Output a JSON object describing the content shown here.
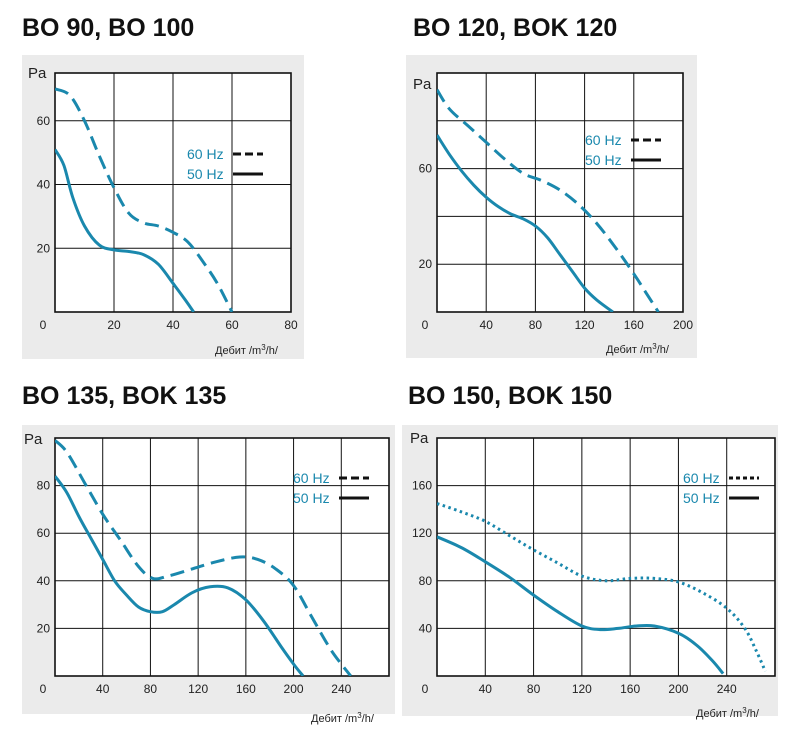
{
  "colors": {
    "series": "#1a88ad",
    "panel": "#ebebeb",
    "grid": "#111111"
  },
  "chart_data": [
    {
      "type": "line",
      "title": "BO 90, BO 100",
      "ylabel": "Pa",
      "xlabel_prefix": "Дебит /m",
      "xlabel_sup": "3",
      "xlabel_suffix": "/h/",
      "xlim": [
        0,
        80
      ],
      "ylim": [
        0,
        75
      ],
      "xticks": [
        20,
        40,
        60,
        80
      ],
      "yticks": [
        20,
        40,
        60
      ],
      "xgrid": [
        0,
        20,
        40,
        60,
        80
      ],
      "ygrid": [
        0,
        20,
        40,
        60,
        75
      ],
      "origin_label": "0",
      "legend": "right",
      "series": [
        {
          "name": "60 Hz",
          "style": "dashed",
          "points": [
            [
              0,
              70
            ],
            [
              5,
              68
            ],
            [
              10,
              60
            ],
            [
              15,
              49
            ],
            [
              20,
              39
            ],
            [
              25,
              31
            ],
            [
              30,
              28
            ],
            [
              35,
              27
            ],
            [
              40,
              25
            ],
            [
              45,
              22
            ],
            [
              50,
              16
            ],
            [
              55,
              9
            ],
            [
              60,
              0
            ]
          ]
        },
        {
          "name": "50 Hz",
          "style": "solid",
          "points": [
            [
              0,
              51
            ],
            [
              3,
              46
            ],
            [
              6,
              36
            ],
            [
              10,
              27
            ],
            [
              15,
              21
            ],
            [
              20,
              19.5
            ],
            [
              25,
              19
            ],
            [
              30,
              18
            ],
            [
              35,
              15
            ],
            [
              40,
              9
            ],
            [
              44,
              4
            ],
            [
              47,
              0
            ]
          ]
        }
      ]
    },
    {
      "type": "line",
      "title": "BO 120, BOK 120",
      "ylabel": "Pa",
      "xlabel_prefix": "Дебит /m",
      "xlabel_sup": "3",
      "xlabel_suffix": "/h/",
      "xlim": [
        0,
        200
      ],
      "ylim": [
        0,
        100
      ],
      "xticks": [
        40,
        80,
        120,
        160,
        200
      ],
      "yticks": [
        20,
        60
      ],
      "xgrid": [
        0,
        40,
        80,
        120,
        160,
        200
      ],
      "ygrid": [
        0,
        20,
        40,
        60,
        80,
        100
      ],
      "origin_label": "0",
      "legend": "top-right",
      "series": [
        {
          "name": "60 Hz",
          "style": "dashed",
          "points": [
            [
              0,
              93
            ],
            [
              10,
              85
            ],
            [
              25,
              78
            ],
            [
              40,
              71
            ],
            [
              55,
              64
            ],
            [
              70,
              58
            ],
            [
              85,
              55
            ],
            [
              100,
              51
            ],
            [
              115,
              45
            ],
            [
              130,
              37
            ],
            [
              145,
              27
            ],
            [
              160,
              16
            ],
            [
              170,
              8
            ],
            [
              180,
              0
            ]
          ]
        },
        {
          "name": "50 Hz",
          "style": "solid",
          "points": [
            [
              0,
              74
            ],
            [
              10,
              66
            ],
            [
              20,
              59
            ],
            [
              30,
              53
            ],
            [
              40,
              48
            ],
            [
              50,
              44
            ],
            [
              60,
              41
            ],
            [
              70,
              39
            ],
            [
              80,
              36
            ],
            [
              90,
              31
            ],
            [
              100,
              24
            ],
            [
              110,
              17
            ],
            [
              120,
              10
            ],
            [
              130,
              5
            ],
            [
              143,
              0
            ]
          ]
        }
      ]
    },
    {
      "type": "line",
      "title": "BO 135, BOK 135",
      "ylabel": "Pa",
      "xlabel_prefix": "Дебит /m",
      "xlabel_sup": "3",
      "xlabel_suffix": "/h/",
      "xlim": [
        0,
        280
      ],
      "ylim": [
        0,
        100
      ],
      "xticks": [
        40,
        80,
        120,
        160,
        200,
        240
      ],
      "yticks": [
        20,
        40,
        60,
        80
      ],
      "xgrid": [
        0,
        40,
        80,
        120,
        160,
        200,
        240,
        280
      ],
      "ygrid": [
        0,
        20,
        40,
        60,
        80,
        100
      ],
      "origin_label": "0",
      "legend": "top-right",
      "series": [
        {
          "name": "60 Hz",
          "style": "dashed",
          "points": [
            [
              0,
              99
            ],
            [
              10,
              94
            ],
            [
              25,
              81
            ],
            [
              40,
              68
            ],
            [
              55,
              57
            ],
            [
              70,
              46
            ],
            [
              82,
              41
            ],
            [
              95,
              42
            ],
            [
              115,
              45
            ],
            [
              135,
              48
            ],
            [
              155,
              50
            ],
            [
              170,
              49
            ],
            [
              185,
              45
            ],
            [
              200,
              38
            ],
            [
              215,
              25
            ],
            [
              230,
              12
            ],
            [
              240,
              5
            ],
            [
              248,
              0
            ]
          ]
        },
        {
          "name": "50 Hz",
          "style": "solid",
          "points": [
            [
              0,
              84
            ],
            [
              10,
              77
            ],
            [
              20,
              67
            ],
            [
              30,
              58
            ],
            [
              40,
              49
            ],
            [
              50,
              40
            ],
            [
              60,
              34
            ],
            [
              70,
              29
            ],
            [
              80,
              27
            ],
            [
              90,
              27
            ],
            [
              100,
              30
            ],
            [
              115,
              35
            ],
            [
              130,
              37.5
            ],
            [
              145,
              37
            ],
            [
              160,
              32
            ],
            [
              175,
              23
            ],
            [
              190,
              12
            ],
            [
              200,
              5
            ],
            [
              208,
              0
            ]
          ]
        }
      ]
    },
    {
      "type": "line",
      "title": "BO 150, BOK 150",
      "ylabel": "Pa",
      "xlabel_prefix": "Дебит /m",
      "xlabel_sup": "3",
      "xlabel_suffix": "/h/",
      "xlim": [
        0,
        280
      ],
      "ylim": [
        0,
        200
      ],
      "xticks": [
        40,
        80,
        120,
        160,
        200,
        240
      ],
      "yticks": [
        40,
        80,
        120,
        160
      ],
      "xgrid": [
        0,
        40,
        80,
        120,
        160,
        200,
        240,
        280
      ],
      "ygrid": [
        0,
        40,
        80,
        120,
        160,
        200
      ],
      "origin_label": "0",
      "legend": "top-right",
      "series": [
        {
          "name": "60 Hz",
          "style": "dotted",
          "points": [
            [
              0,
              145
            ],
            [
              20,
              138
            ],
            [
              40,
              130
            ],
            [
              60,
              118
            ],
            [
              80,
              106
            ],
            [
              100,
              95
            ],
            [
              120,
              84
            ],
            [
              140,
              80
            ],
            [
              160,
              82
            ],
            [
              180,
              82
            ],
            [
              200,
              79
            ],
            [
              220,
              70
            ],
            [
              240,
              57
            ],
            [
              255,
              40
            ],
            [
              265,
              20
            ],
            [
              272,
              4
            ]
          ]
        },
        {
          "name": "50 Hz",
          "style": "solid",
          "points": [
            [
              0,
              117
            ],
            [
              20,
              108
            ],
            [
              40,
              96
            ],
            [
              60,
              83
            ],
            [
              80,
              68
            ],
            [
              100,
              54
            ],
            [
              120,
              42
            ],
            [
              135,
              39
            ],
            [
              150,
              40
            ],
            [
              165,
              42
            ],
            [
              180,
              42
            ],
            [
              200,
              36
            ],
            [
              215,
              26
            ],
            [
              228,
              13
            ],
            [
              237,
              2
            ]
          ]
        }
      ]
    }
  ]
}
